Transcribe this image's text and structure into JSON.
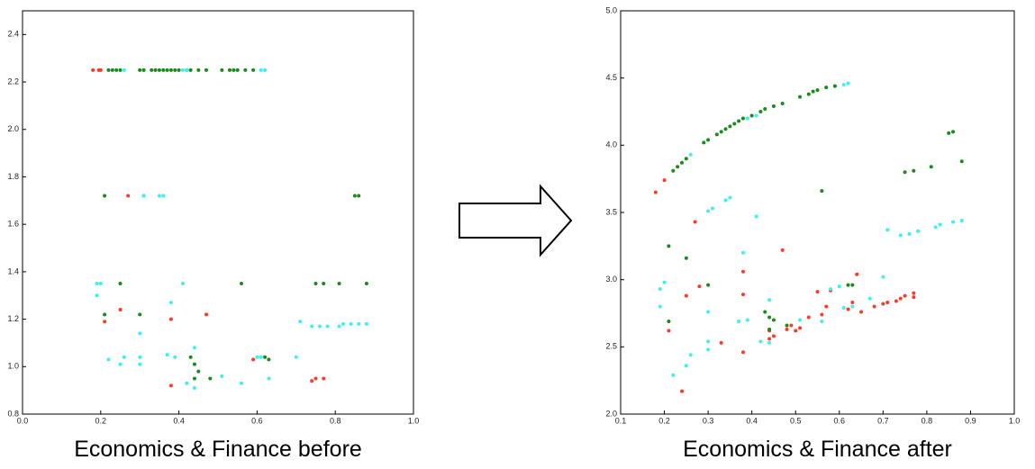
{
  "chart_data": [
    {
      "type": "scatter",
      "title": "Economics & Finance before",
      "xlim": [
        0,
        1
      ],
      "ylim": [
        0.8,
        2.5
      ],
      "xticks": [
        {
          "value": 0,
          "label": "0.0"
        },
        0.2,
        0.4,
        0.6,
        0.8,
        {
          "value": 1,
          "label": "1.0"
        }
      ],
      "yticks": [
        0.8,
        {
          "value": 1,
          "label": "1.0"
        },
        1.2,
        1.4,
        1.6,
        1.8,
        {
          "value": 2,
          "label": "2.0"
        },
        2.2,
        2.4
      ],
      "series": [
        {
          "color": "#ff3a2a",
          "x": [
            0.18,
            0.195,
            0.2,
            0.27,
            0.21,
            0.25,
            0.38,
            0.47,
            0.38,
            0.59,
            0.74,
            0.75,
            0.77
          ],
          "values": [
            2.25,
            2.25,
            2.25,
            1.72,
            1.19,
            1.24,
            1.2,
            1.22,
            0.92,
            1.03,
            0.94,
            0.95,
            0.95
          ]
        },
        {
          "color": "#1a8a1a",
          "x": [
            0.22,
            0.23,
            0.24,
            0.25,
            0.3,
            0.31,
            0.33,
            0.34,
            0.35,
            0.36,
            0.37,
            0.38,
            0.39,
            0.4,
            0.42,
            0.43,
            0.45,
            0.47,
            0.51,
            0.53,
            0.54,
            0.55,
            0.57,
            0.59,
            0.21,
            0.31,
            0.85,
            0.86,
            0.25,
            0.56,
            0.75,
            0.77,
            0.81,
            0.88,
            0.21,
            0.3,
            0.43,
            0.44,
            0.45,
            0.44,
            0.48,
            0.62,
            0.63
          ],
          "values": [
            2.25,
            2.25,
            2.25,
            2.25,
            2.25,
            2.25,
            2.25,
            2.25,
            2.25,
            2.25,
            2.25,
            2.25,
            2.25,
            2.25,
            2.25,
            2.25,
            2.25,
            2.25,
            2.25,
            2.25,
            2.25,
            2.25,
            2.25,
            2.25,
            1.72,
            1.72,
            1.72,
            1.72,
            1.35,
            1.35,
            1.35,
            1.35,
            1.35,
            1.35,
            1.22,
            1.22,
            1.04,
            1.01,
            0.98,
            0.95,
            0.95,
            1.04,
            1.03
          ]
        },
        {
          "color": "#3ff0f0",
          "x": [
            0.26,
            0.41,
            0.42,
            0.61,
            0.62,
            0.31,
            0.35,
            0.36,
            0.19,
            0.2,
            0.41,
            0.19,
            0.38,
            0.3,
            0.22,
            0.25,
            0.26,
            0.3,
            0.3,
            0.37,
            0.39,
            0.42,
            0.44,
            0.44,
            0.51,
            0.56,
            0.6,
            0.61,
            0.63,
            0.7,
            0.71,
            0.74,
            0.76,
            0.78,
            0.81,
            0.82,
            0.84,
            0.86,
            0.88
          ],
          "values": [
            2.25,
            2.25,
            2.25,
            2.25,
            2.25,
            1.72,
            1.72,
            1.72,
            1.35,
            1.35,
            1.35,
            1.3,
            1.27,
            1.14,
            1.03,
            1.01,
            1.04,
            1.04,
            1.01,
            1.05,
            1.04,
            0.93,
            0.91,
            1.08,
            0.96,
            0.93,
            1.04,
            1.04,
            0.95,
            1.04,
            1.19,
            1.17,
            1.17,
            1.17,
            1.17,
            1.18,
            1.18,
            1.18,
            1.18
          ]
        }
      ]
    },
    {
      "type": "scatter",
      "title": "Economics & Finance after",
      "xlim": [
        0.1,
        1
      ],
      "ylim": [
        2,
        5
      ],
      "xticks": [
        0.1,
        0.2,
        0.3,
        0.4,
        0.5,
        0.6,
        0.7,
        0.8,
        0.9,
        {
          "value": 1,
          "label": "1.0"
        }
      ],
      "yticks": [
        {
          "value": 2,
          "label": "2.0"
        },
        2.5,
        {
          "value": 3,
          "label": "3.0"
        },
        3.5,
        {
          "value": 4,
          "label": "4.0"
        },
        4.5,
        {
          "value": 5,
          "label": "5.0"
        }
      ],
      "series": [
        {
          "color": "#ff3a2a",
          "x": [
            0.18,
            0.2,
            0.27,
            0.21,
            0.24,
            0.25,
            0.28,
            0.33,
            0.38,
            0.38,
            0.38,
            0.44,
            0.44,
            0.45,
            0.47,
            0.48,
            0.49,
            0.5,
            0.51,
            0.53,
            0.55,
            0.56,
            0.57,
            0.58,
            0.62,
            0.63,
            0.64,
            0.65,
            0.68,
            0.7,
            0.71,
            0.73,
            0.74,
            0.75,
            0.77,
            0.77
          ],
          "values": [
            3.65,
            3.74,
            3.43,
            2.62,
            2.17,
            2.88,
            2.95,
            2.53,
            3.06,
            2.89,
            2.46,
            2.56,
            2.62,
            2.58,
            3.22,
            2.63,
            2.66,
            2.62,
            2.64,
            2.72,
            2.91,
            2.74,
            2.8,
            2.92,
            2.78,
            2.83,
            3.04,
            2.76,
            2.8,
            2.82,
            2.83,
            2.84,
            2.86,
            2.88,
            2.87,
            2.9
          ]
        },
        {
          "color": "#1a8a1a",
          "x": [
            0.22,
            0.23,
            0.24,
            0.25,
            0.29,
            0.3,
            0.32,
            0.33,
            0.34,
            0.35,
            0.36,
            0.37,
            0.38,
            0.4,
            0.42,
            0.43,
            0.45,
            0.47,
            0.51,
            0.53,
            0.54,
            0.55,
            0.57,
            0.59,
            0.21,
            0.25,
            0.3,
            0.21,
            0.56,
            0.75,
            0.77,
            0.81,
            0.85,
            0.86,
            0.88,
            0.43,
            0.44,
            0.45,
            0.44,
            0.48,
            0.62,
            0.63
          ],
          "values": [
            3.81,
            3.84,
            3.87,
            3.9,
            4.02,
            4.04,
            4.08,
            4.1,
            4.12,
            4.14,
            4.16,
            4.18,
            4.2,
            4.22,
            4.25,
            4.27,
            4.29,
            4.31,
            4.36,
            4.38,
            4.4,
            4.41,
            4.43,
            4.44,
            3.25,
            3.16,
            2.96,
            2.69,
            3.66,
            3.8,
            3.81,
            3.84,
            4.09,
            4.1,
            3.88,
            2.76,
            2.72,
            2.7,
            2.63,
            2.66,
            2.96,
            2.96
          ]
        },
        {
          "color": "#3ff0f0",
          "x": [
            0.26,
            0.3,
            0.31,
            0.34,
            0.35,
            0.41,
            0.38,
            0.39,
            0.41,
            0.61,
            0.62,
            0.19,
            0.2,
            0.19,
            0.22,
            0.25,
            0.26,
            0.3,
            0.3,
            0.3,
            0.37,
            0.39,
            0.42,
            0.44,
            0.44,
            0.51,
            0.56,
            0.58,
            0.6,
            0.61,
            0.63,
            0.67,
            0.7,
            0.71,
            0.74,
            0.76,
            0.78,
            0.82,
            0.83,
            0.86,
            0.88
          ],
          "values": [
            3.93,
            3.51,
            3.53,
            3.59,
            3.61,
            3.47,
            3.2,
            4.2,
            4.22,
            4.45,
            4.46,
            2.93,
            2.98,
            2.8,
            2.29,
            2.36,
            2.44,
            2.76,
            2.54,
            2.48,
            2.69,
            2.7,
            2.54,
            2.53,
            2.85,
            2.7,
            2.69,
            2.93,
            2.95,
            2.79,
            2.8,
            2.86,
            3.02,
            3.37,
            3.33,
            3.34,
            3.36,
            3.39,
            3.41,
            3.43,
            3.44
          ]
        }
      ]
    }
  ]
}
